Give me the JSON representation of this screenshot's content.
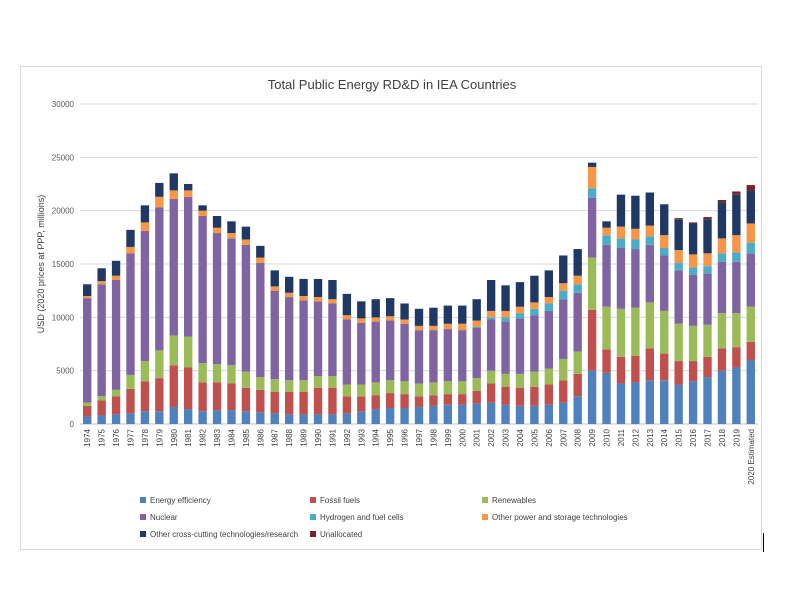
{
  "chart_data": {
    "type": "bar",
    "stacked": true,
    "title": "Total Public Energy RD&D in IEA Countries",
    "xlabel": "",
    "ylabel": "USD (2020 prices at PPP, millions)",
    "ylim": [
      0,
      30000
    ],
    "yticks": [
      "0",
      "5000",
      "10000",
      "15000",
      "20000",
      "25000",
      "30000"
    ],
    "grid": true,
    "legend_position": "bottom",
    "categories": [
      "1974",
      "1975",
      "1976",
      "1977",
      "1978",
      "1979",
      "1980",
      "1981",
      "1982",
      "1983",
      "1984",
      "1985",
      "1986",
      "1987",
      "1988",
      "1989",
      "1990",
      "1991",
      "1992",
      "1993",
      "1994",
      "1995",
      "1996",
      "1997",
      "1998",
      "1999",
      "2000",
      "2001",
      "2002",
      "2003",
      "2004",
      "2005",
      "2006",
      "2007",
      "2008",
      "2009",
      "2010",
      "2011",
      "2012",
      "2013",
      "2014",
      "2015",
      "2016",
      "2017",
      "2018",
      "2019",
      "2020 Estimated"
    ],
    "series": [
      {
        "name": "Energy efficiency",
        "color": "#4f81bd",
        "values": [
          700,
          800,
          900,
          1000,
          1200,
          1200,
          1600,
          1400,
          1200,
          1300,
          1300,
          1200,
          1100,
          1000,
          900,
          900,
          900,
          900,
          1000,
          1200,
          1400,
          1500,
          1500,
          1600,
          1700,
          1800,
          1800,
          1900,
          2000,
          1800,
          1700,
          1700,
          1800,
          2000,
          2600,
          5000,
          4800,
          3800,
          3900,
          4100,
          4100,
          3700,
          4000,
          4400,
          5000,
          5300,
          6000
        ]
      },
      {
        "name": "Fossil fuels",
        "color": "#c0504d",
        "values": [
          1000,
          1400,
          1700,
          2300,
          2800,
          3100,
          3900,
          3900,
          2700,
          2600,
          2500,
          2200,
          2100,
          2000,
          2100,
          2100,
          2500,
          2500,
          1600,
          1400,
          1300,
          1400,
          1300,
          1000,
          1000,
          1000,
          1000,
          1200,
          1800,
          1700,
          1700,
          1800,
          1900,
          2100,
          2100,
          5700,
          2200,
          2500,
          2500,
          3000,
          2500,
          2200,
          1900,
          1900,
          2100,
          1900,
          1700
        ]
      },
      {
        "name": "Renewables",
        "color": "#9bbb59",
        "values": [
          300,
          400,
          600,
          1300,
          1900,
          2600,
          2800,
          2900,
          1800,
          1700,
          1700,
          1500,
          1200,
          1200,
          1100,
          1100,
          1100,
          1100,
          1100,
          1100,
          1200,
          1200,
          1200,
          1200,
          1200,
          1200,
          1200,
          1200,
          1200,
          1200,
          1300,
          1400,
          1500,
          2000,
          2100,
          4900,
          4000,
          4500,
          4500,
          4300,
          4000,
          3500,
          3300,
          3000,
          3300,
          3200,
          3300
        ]
      },
      {
        "name": "Nuclear",
        "color": "#8064a2",
        "values": [
          9800,
          10500,
          10300,
          11400,
          12200,
          13400,
          12800,
          13100,
          13800,
          12300,
          11900,
          11900,
          10700,
          8300,
          7800,
          7500,
          7000,
          6800,
          6100,
          5800,
          5700,
          5600,
          5400,
          5000,
          4900,
          4900,
          4800,
          4700,
          4800,
          4900,
          5200,
          5300,
          5400,
          5600,
          5500,
          5600,
          5800,
          5700,
          5500,
          5400,
          5200,
          5000,
          4800,
          4800,
          4800,
          4800,
          5000
        ]
      },
      {
        "name": "Hydrogen and fuel cells",
        "color": "#4bacc6",
        "values": [
          0,
          0,
          0,
          0,
          0,
          0,
          0,
          0,
          0,
          0,
          0,
          0,
          0,
          0,
          0,
          0,
          0,
          0,
          0,
          0,
          0,
          0,
          0,
          0,
          0,
          0,
          0,
          100,
          200,
          400,
          500,
          600,
          700,
          800,
          800,
          900,
          900,
          900,
          900,
          800,
          700,
          700,
          700,
          700,
          800,
          900,
          1000
        ]
      },
      {
        "name": "Other power and storage technologies",
        "color": "#f79646",
        "values": [
          200,
          300,
          400,
          600,
          800,
          1000,
          800,
          600,
          500,
          500,
          500,
          500,
          500,
          400,
          400,
          400,
          400,
          400,
          400,
          400,
          400,
          400,
          400,
          400,
          400,
          500,
          600,
          600,
          600,
          600,
          600,
          600,
          600,
          700,
          800,
          2000,
          700,
          1100,
          1000,
          1000,
          1200,
          1200,
          1200,
          1200,
          1400,
          1600,
          1800
        ]
      },
      {
        "name": "Other cross-cutting technologies/research",
        "color": "#1f3864",
        "values": [
          1100,
          1200,
          1400,
          1600,
          1600,
          1300,
          1600,
          600,
          500,
          1100,
          1100,
          1200,
          1100,
          1500,
          1500,
          1600,
          1700,
          1800,
          2000,
          1600,
          1700,
          1700,
          1500,
          1600,
          1700,
          1700,
          1700,
          2000,
          2900,
          2400,
          2300,
          2500,
          2500,
          2600,
          2500,
          400,
          600,
          3000,
          3100,
          3100,
          2900,
          2900,
          2900,
          3200,
          3400,
          3800,
          3100
        ]
      },
      {
        "name": "Unallocated",
        "color": "#7b2423",
        "values": [
          0,
          0,
          0,
          0,
          0,
          0,
          0,
          0,
          0,
          0,
          0,
          0,
          0,
          0,
          0,
          0,
          0,
          0,
          0,
          0,
          0,
          0,
          0,
          0,
          0,
          0,
          0,
          0,
          0,
          0,
          0,
          0,
          0,
          0,
          0,
          0,
          0,
          0,
          0,
          0,
          0,
          100,
          100,
          200,
          200,
          300,
          500
        ]
      }
    ]
  }
}
